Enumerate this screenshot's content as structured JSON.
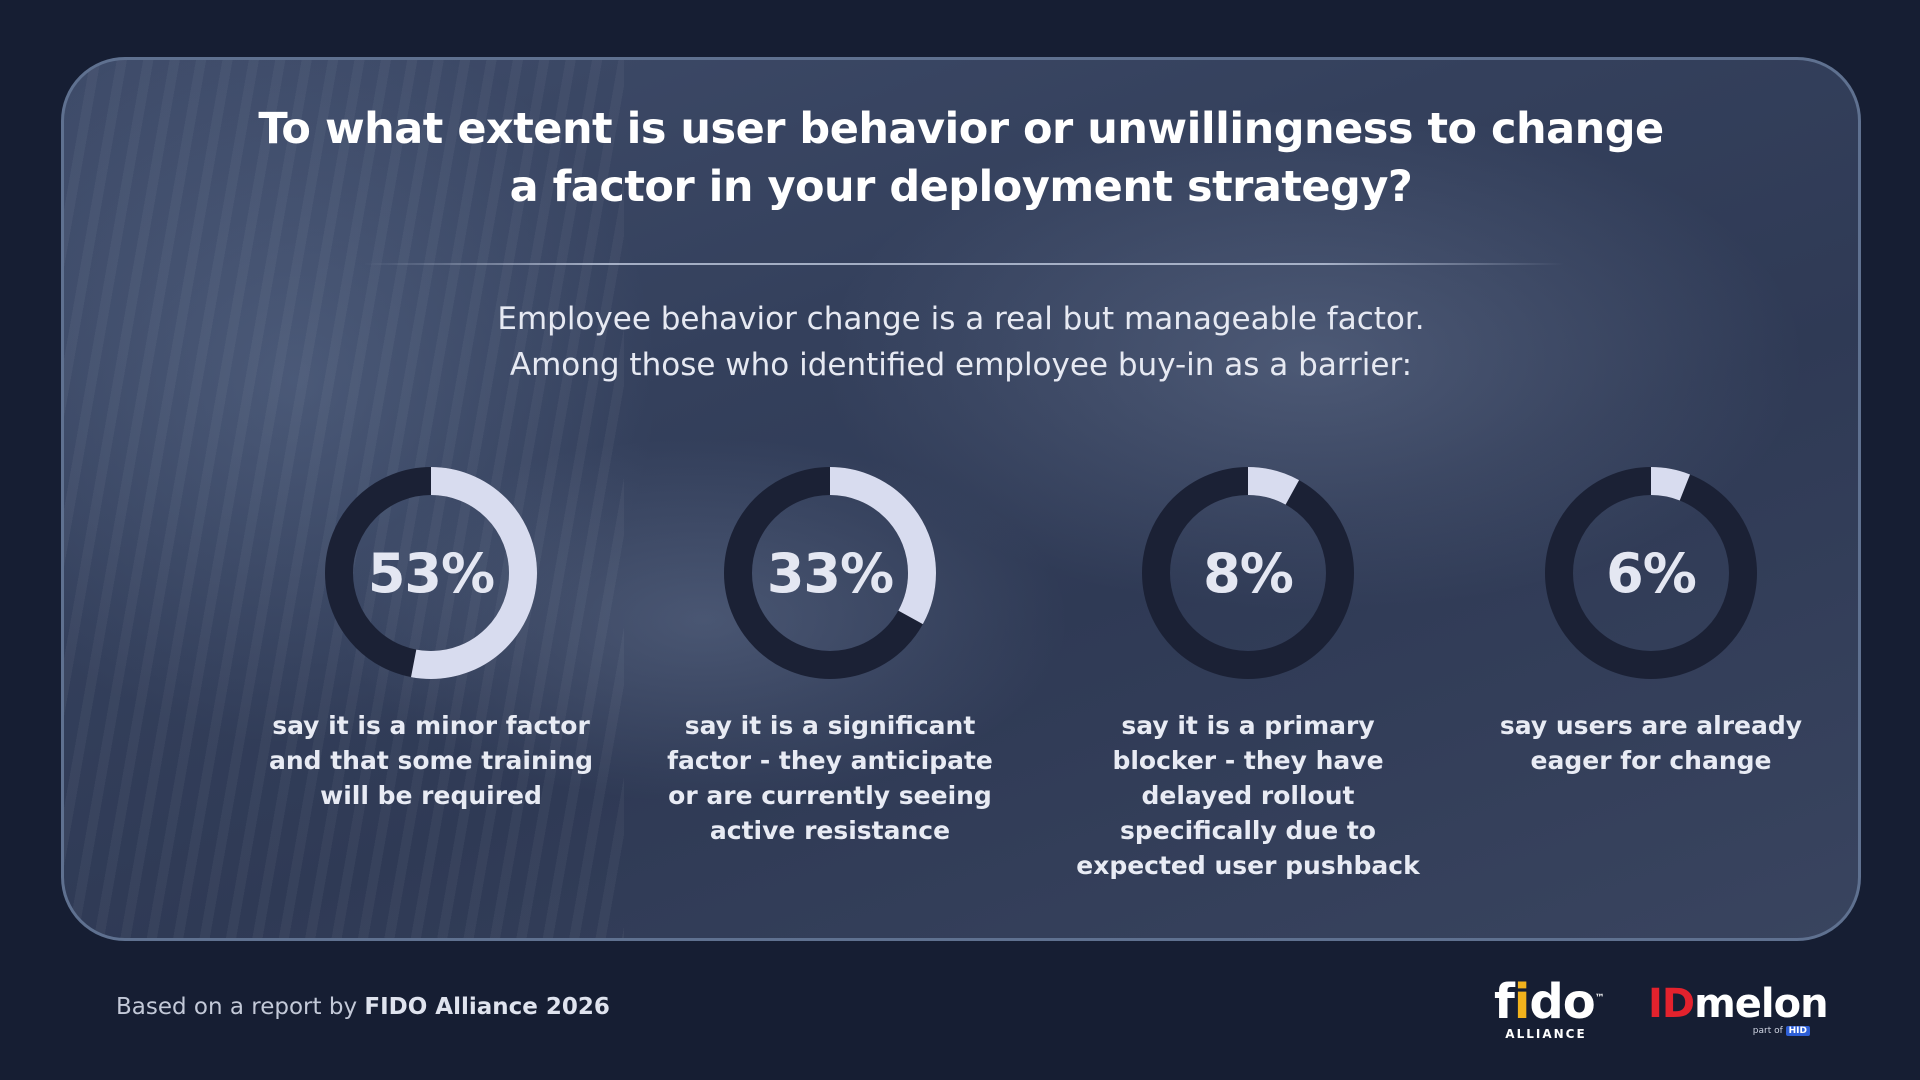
{
  "title_line1": "To what extent is user behavior or unwillingness to change",
  "title_line2": "a factor in your deployment strategy?",
  "subtitle_line1": "Employee behavior change is a real but manageable factor.",
  "subtitle_line2": "Among those who identified employee buy-in as a barrier:",
  "colors": {
    "ring_fill": "#d8dcef",
    "ring_track": "#1b2135",
    "card_border": "#5f7190",
    "background": "#161e33"
  },
  "chart_data": {
    "type": "donut",
    "title": "To what extent is user behavior or unwillingness to change a factor in your deployment strategy?",
    "unit": "%",
    "items": [
      {
        "label": "53%",
        "value": 53,
        "desc_lines": [
          "say it is a minor factor",
          "and that some training",
          "will be required"
        ]
      },
      {
        "label": "33%",
        "value": 33,
        "desc_lines": [
          "say it is a significant",
          "factor - they anticipate",
          "or are currently seeing",
          "active resistance"
        ]
      },
      {
        "label": "8%",
        "value": 8,
        "desc_lines": [
          "say it is a primary",
          "blocker - they have",
          "delayed rollout",
          "specifically due to",
          "expected user pushback"
        ]
      },
      {
        "label": "6%",
        "value": 6,
        "desc_lines": [
          "say users are already",
          "eager for change"
        ]
      }
    ]
  },
  "footer": {
    "prefix": "Based on a report by ",
    "source": "FIDO Alliance 2026"
  },
  "logos": {
    "fido": {
      "letter_f": "f",
      "dot_i": "i",
      "rest": "do",
      "tm": "™",
      "sub": "ALLIANCE"
    },
    "idmelon": {
      "id": "ID",
      "rest": "melon",
      "sub_prefix": "part of ",
      "sub_badge": "HID"
    }
  }
}
